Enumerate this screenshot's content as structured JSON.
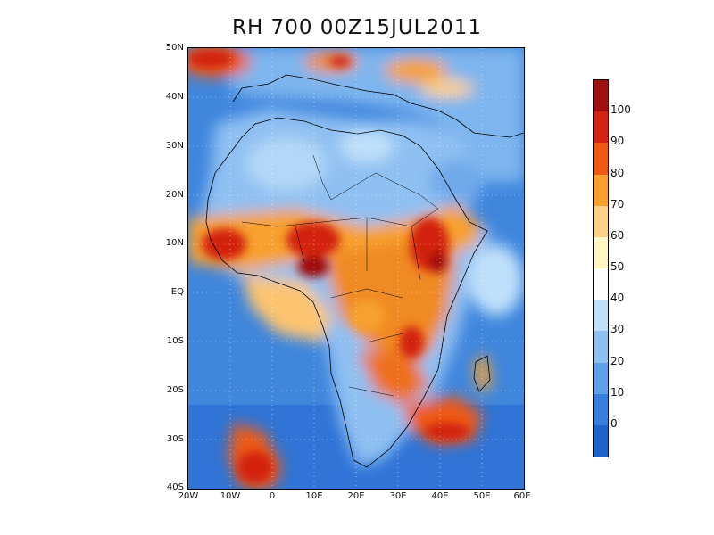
{
  "title": "RH 700 00Z15JUL2011",
  "map": {
    "lon_range": [
      -20,
      60
    ],
    "lat_range": [
      -40,
      50
    ],
    "lat_labels": [
      "50N",
      "40N",
      "30N",
      "20N",
      "10N",
      "EQ",
      "10S",
      "20S",
      "30S",
      "40S"
    ],
    "lon_labels": [
      "20W",
      "10W",
      "0",
      "10E",
      "20E",
      "30E",
      "40E",
      "50E",
      "60E"
    ],
    "gridlines": "dotted",
    "ocean_base_color": "#3f86dd",
    "land_base_color": "#8fc0f2"
  },
  "colorbar": {
    "labels": [
      "100",
      "90",
      "80",
      "70",
      "60",
      "50",
      "40",
      "30",
      "20",
      "10",
      "0"
    ],
    "colors": [
      "#a01010",
      "#d22410",
      "#ee5a14",
      "#f7a02e",
      "#fdd088",
      "#fff6c2",
      "#ffffff",
      "#bfe0fa",
      "#8cc1f2",
      "#5fa1e8",
      "#3580dc",
      "#1c63cc"
    ]
  }
}
